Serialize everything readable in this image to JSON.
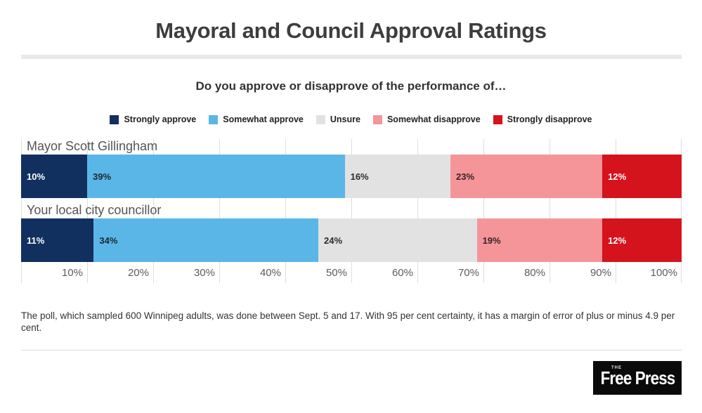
{
  "header": {
    "title": "Mayoral and Council Approval Ratings",
    "subtitle": "Do you approve or disapprove of the performance of…"
  },
  "chart_data": {
    "type": "bar",
    "stacked": true,
    "orientation": "horizontal",
    "xlim": [
      0,
      100
    ],
    "grid": true,
    "legend_position": "top",
    "categories": [
      "Mayor Scott Gillingham",
      "Your local city councillor"
    ],
    "series": [
      {
        "name": "Strongly approve",
        "color": "#12305f",
        "label_color": "#ffffff",
        "values": [
          10,
          11
        ]
      },
      {
        "name": "Somewhat approve",
        "color": "#5bb6e8",
        "label_color": "#1d2730",
        "values": [
          39,
          34
        ]
      },
      {
        "name": "Unsure",
        "color": "#e2e2e2",
        "label_color": "#2b2b2b",
        "values": [
          16,
          24
        ]
      },
      {
        "name": "Somewhat disapprove",
        "color": "#f59599",
        "label_color": "#392225",
        "values": [
          23,
          19
        ]
      },
      {
        "name": "Strongly disapprove",
        "color": "#d5131c",
        "label_color": "#ffffff",
        "values": [
          12,
          12
        ]
      }
    ],
    "x_tick_labels": [
      "10%",
      "20%",
      "30%",
      "40%",
      "50%",
      "60%",
      "70%",
      "80%",
      "90%",
      "100%"
    ]
  },
  "footnote": "The poll, which sampled 600 Winnipeg adults, was done between Sept. 5 and 17. With 95 per cent certainty, it has a margin of error of plus or minus 4.9 per cent.",
  "footer": {
    "logo": {
      "the": "THE",
      "name": "Free Press"
    }
  }
}
